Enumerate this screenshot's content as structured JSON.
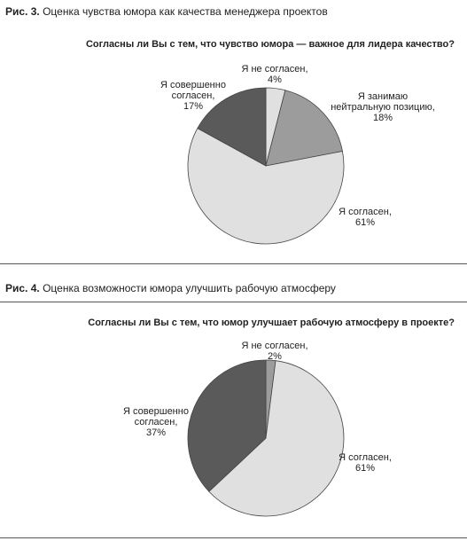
{
  "figures": [
    {
      "caption_prefix": "Рис. 3.",
      "caption_text": "Оценка чувства юмора как качества менеджера проектов",
      "question": "Согласны ли Вы с тем, что чувство юмора — важное для лидера качество?",
      "labels": [
        {
          "line1": "Я не согласен,",
          "line2": "",
          "pct": "4%"
        },
        {
          "line1": "Я занимаю",
          "line2": "нейтральную позицию,",
          "pct": "18%"
        },
        {
          "line1": "Я согласен,",
          "line2": "",
          "pct": "61%"
        },
        {
          "line1": "Я совершенно",
          "line2": "согласен,",
          "pct": "17%"
        }
      ]
    },
    {
      "caption_prefix": "Рис. 4.",
      "caption_text": "Оценка возможности юмора улучшить рабочую атмосферу",
      "question": "Согласны ли Вы с тем, что юмор улучшает рабочую атмосферу в проекте?",
      "labels": [
        {
          "line1": "Я не согласен,",
          "line2": "",
          "pct": "2%"
        },
        {
          "line1": "Я согласен,",
          "line2": "",
          "pct": "61%"
        },
        {
          "line1": "Я совершенно",
          "line2": "согласен,",
          "pct": "37%"
        }
      ]
    }
  ],
  "chart_data": [
    {
      "type": "pie",
      "title": "Согласны ли Вы с тем, что чувство юмора — важное для лидера качество?",
      "categories": [
        "Я не согласен",
        "Я занимаю нейтральную позицию",
        "Я согласен",
        "Я совершенно согласен"
      ],
      "values": [
        4,
        18,
        61,
        17
      ],
      "colors": [
        "#e0e0e0",
        "#9c9c9c",
        "#e0e0e0",
        "#5a5a5a"
      ]
    },
    {
      "type": "pie",
      "title": "Согласны ли Вы с тем, что юмор улучшает рабочую атмосферу в проекте?",
      "categories": [
        "Я не согласен",
        "Я согласен",
        "Я совершенно согласен"
      ],
      "values": [
        2,
        61,
        37
      ],
      "colors": [
        "#9c9c9c",
        "#e0e0e0",
        "#5a5a5a"
      ]
    }
  ]
}
